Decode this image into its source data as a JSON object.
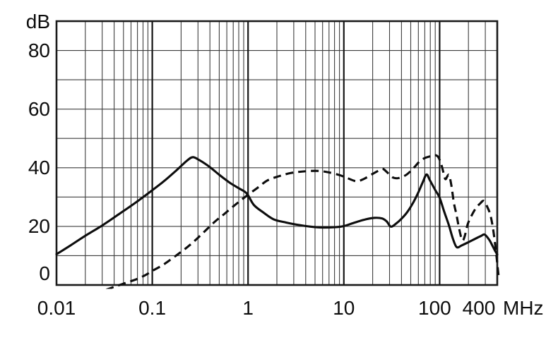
{
  "chart_data": {
    "type": "line",
    "title": "",
    "legend": false,
    "grid": true,
    "x_axis": {
      "scale": "log",
      "range_mhz": [
        0.01,
        400
      ],
      "unit_label": "MHz",
      "ticks": [
        {
          "value": 0.01,
          "label": "0.01"
        },
        {
          "value": 0.1,
          "label": "0.1"
        },
        {
          "value": 1,
          "label": "1"
        },
        {
          "value": 10,
          "label": "10"
        },
        {
          "value": 100,
          "label": "100"
        },
        {
          "value": 400,
          "label": "400"
        }
      ],
      "major_gridlines_mhz": [
        0.1,
        1,
        10,
        100
      ]
    },
    "y_axis": {
      "scale": "linear",
      "range_db": [
        0,
        90
      ],
      "unit_label": "dB",
      "gridline_step_db": 10,
      "ticks": [
        {
          "value": 80,
          "label": "80"
        },
        {
          "value": 60,
          "label": "60"
        },
        {
          "value": 40,
          "label": "40"
        },
        {
          "value": 20,
          "label": "20"
        },
        {
          "value": 0,
          "label": "0"
        }
      ]
    },
    "series": [
      {
        "name": "solid-curve",
        "line_style": "solid",
        "color": "#0d0d0d",
        "points_mhz_db": [
          [
            0.01,
            10.5
          ],
          [
            0.014,
            13.5
          ],
          [
            0.02,
            16.8
          ],
          [
            0.03,
            20.3
          ],
          [
            0.045,
            24.2
          ],
          [
            0.065,
            27.8
          ],
          [
            0.09,
            31.2
          ],
          [
            0.13,
            35.2
          ],
          [
            0.18,
            39.2
          ],
          [
            0.23,
            42.4
          ],
          [
            0.265,
            43.6
          ],
          [
            0.31,
            42.6
          ],
          [
            0.4,
            40.2
          ],
          [
            0.5,
            37.6
          ],
          [
            0.65,
            34.8
          ],
          [
            0.8,
            33.0
          ],
          [
            0.97,
            31.2
          ],
          [
            1.15,
            27.3
          ],
          [
            1.45,
            24.7
          ],
          [
            1.85,
            22.4
          ],
          [
            2.5,
            21.3
          ],
          [
            3.2,
            20.6
          ],
          [
            4.5,
            19.9
          ],
          [
            6,
            19.6
          ],
          [
            8,
            19.7
          ],
          [
            10,
            20.1
          ],
          [
            13,
            21.3
          ],
          [
            17,
            22.4
          ],
          [
            21,
            22.9
          ],
          [
            25,
            22.7
          ],
          [
            28,
            21.7
          ],
          [
            31,
            19.9
          ],
          [
            35,
            20.9
          ],
          [
            40,
            22.6
          ],
          [
            46,
            24.9
          ],
          [
            53,
            28.1
          ],
          [
            60,
            31.6
          ],
          [
            67,
            35.2
          ],
          [
            73,
            37.7
          ],
          [
            79,
            35.8
          ],
          [
            90,
            32.4
          ],
          [
            100,
            29.8
          ],
          [
            112,
            24.9
          ],
          [
            125,
            20.4
          ],
          [
            138,
            15.7
          ],
          [
            151,
            12.9
          ],
          [
            170,
            13.5
          ],
          [
            200,
            14.6
          ],
          [
            240,
            15.9
          ],
          [
            270,
            16.7
          ],
          [
            295,
            17.2
          ],
          [
            330,
            15.4
          ],
          [
            360,
            13.1
          ],
          [
            385,
            11.3
          ],
          [
            400,
            10.4
          ]
        ]
      },
      {
        "name": "dashed-curve",
        "line_style": "dashed",
        "color": "#0d0d0d",
        "points_mhz_db": [
          [
            0.033,
            -1.6
          ],
          [
            0.042,
            -0.4
          ],
          [
            0.055,
            0.9
          ],
          [
            0.07,
            2.1
          ],
          [
            0.085,
            3.4
          ],
          [
            0.1,
            4.8
          ],
          [
            0.13,
            6.9
          ],
          [
            0.17,
            9.6
          ],
          [
            0.22,
            12.3
          ],
          [
            0.28,
            15.2
          ],
          [
            0.35,
            18.2
          ],
          [
            0.45,
            21.6
          ],
          [
            0.55,
            23.9
          ],
          [
            0.7,
            26.8
          ],
          [
            0.85,
            29.0
          ],
          [
            1.0,
            30.8
          ],
          [
            1.25,
            33.1
          ],
          [
            1.6,
            35.7
          ],
          [
            2.1,
            37.1
          ],
          [
            2.8,
            38.2
          ],
          [
            4.0,
            38.8
          ],
          [
            5.5,
            38.9
          ],
          [
            7.0,
            38.4
          ],
          [
            9.0,
            37.5
          ],
          [
            11,
            36.4
          ],
          [
            13.5,
            35.4
          ],
          [
            16,
            36.1
          ],
          [
            20,
            37.9
          ],
          [
            23,
            39.0
          ],
          [
            25.5,
            39.6
          ],
          [
            28,
            38.6
          ],
          [
            32,
            36.8
          ],
          [
            36,
            36.4
          ],
          [
            40,
            36.8
          ],
          [
            45,
            37.6
          ],
          [
            50,
            38.9
          ],
          [
            55,
            40.3
          ],
          [
            62,
            42.2
          ],
          [
            70,
            43.3
          ],
          [
            80,
            43.9
          ],
          [
            90,
            44.3
          ],
          [
            97,
            43.6
          ],
          [
            104,
            41.2
          ],
          [
            110,
            38.2
          ],
          [
            115,
            36.1
          ],
          [
            121,
            37.2
          ],
          [
            126,
            37.4
          ],
          [
            133,
            33.8
          ],
          [
            141,
            28.0
          ],
          [
            150,
            24.0
          ],
          [
            160,
            19.2
          ],
          [
            172,
            15.3
          ],
          [
            182,
            16.4
          ],
          [
            196,
            20.6
          ],
          [
            212,
            23.2
          ],
          [
            238,
            26.1
          ],
          [
            265,
            27.8
          ],
          [
            290,
            28.7
          ],
          [
            315,
            26.6
          ],
          [
            337,
            24.2
          ],
          [
            357,
            20.3
          ],
          [
            374,
            15.7
          ],
          [
            390,
            10.8
          ],
          [
            402,
            6.6
          ],
          [
            415,
            2.5
          ]
        ]
      }
    ]
  },
  "colors": {
    "background": "#ffffff",
    "frame": "#1a1a1a",
    "grid_minor": "#3d3d3d",
    "grid_major": "#161616",
    "text": "#0d0d0d"
  }
}
